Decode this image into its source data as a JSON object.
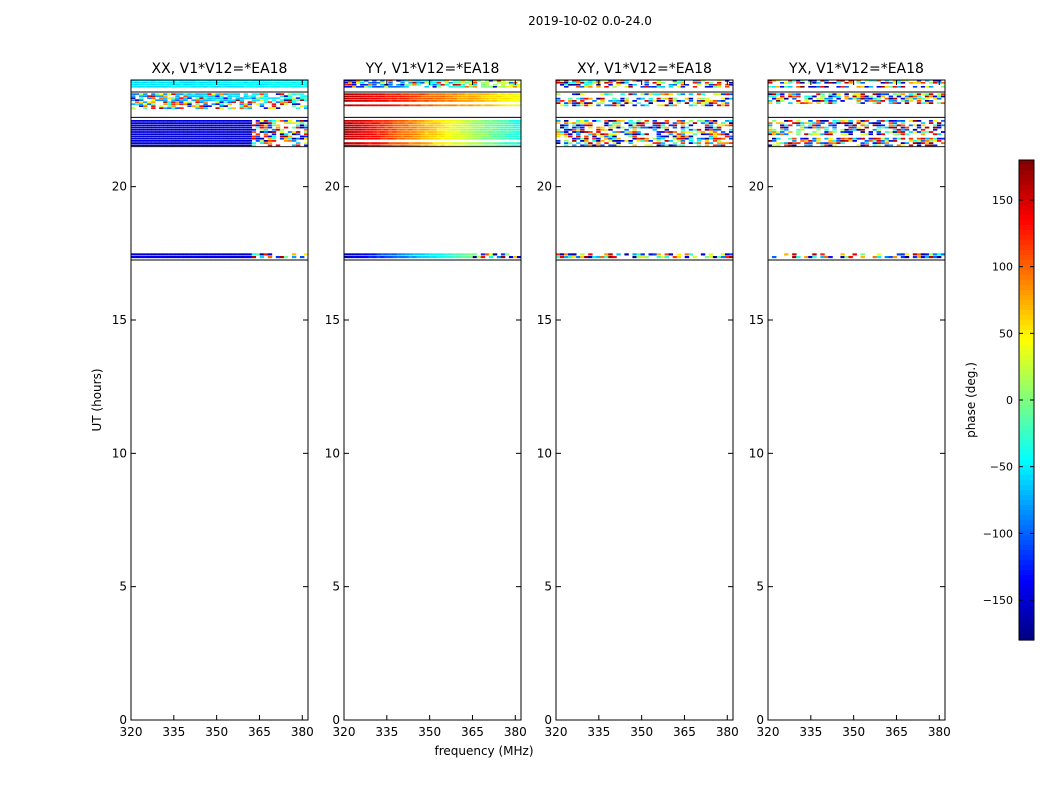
{
  "suptitle": "2019-10-02 0.0-24.0",
  "chart_data": {
    "type": "heatmap",
    "xlabel": "frequency (MHz)",
    "ylabel": "UT (hours)",
    "xlim": [
      320,
      382
    ],
    "ylim": [
      0,
      24
    ],
    "xticks": [
      320,
      335,
      350,
      365,
      380
    ],
    "yticks": [
      0,
      5,
      10,
      15,
      20
    ],
    "colorbar": {
      "label": "phase (deg.)",
      "range": [
        -180,
        180
      ],
      "ticks": [
        -150,
        -100,
        -50,
        0,
        50,
        100,
        150
      ],
      "colormap": "jet"
    },
    "panels": [
      {
        "title": "XX, V1*V12=*EA18",
        "bands": [
          {
            "y": [
              23.7,
              24.0
            ],
            "kind": "coherent",
            "phase_start": -55,
            "phase_end": -45
          },
          {
            "y": [
              23.2,
              23.5
            ],
            "kind": "mixed",
            "phase_start": -90,
            "phase_end": -40
          },
          {
            "y": [
              22.9,
              23.2
            ],
            "kind": "noise"
          },
          {
            "y": [
              21.5,
              22.5
            ],
            "kind": "coherent",
            "phase_start": -150,
            "phase_end": -150,
            "noise_from": 362
          }
        ],
        "events": [
          {
            "y": [
              17.3,
              17.5
            ],
            "kind": "coherent",
            "phase_start": -145,
            "phase_end": -145,
            "noise_from": 362
          }
        ]
      },
      {
        "title": "YY, V1*V12=*EA18",
        "bands": [
          {
            "y": [
              23.7,
              24.0
            ],
            "kind": "mixed",
            "phase_start": -140,
            "phase_end": 40
          },
          {
            "y": [
              23.0,
              23.5
            ],
            "kind": "coherent",
            "phase_start": 160,
            "phase_end": 40
          },
          {
            "y": [
              21.5,
              22.5
            ],
            "kind": "coherent",
            "phase_start": 165,
            "phase_end": -40
          }
        ],
        "events": [
          {
            "y": [
              17.3,
              17.5
            ],
            "kind": "coherent",
            "phase_start": -160,
            "phase_end": 60,
            "noise_from": 365
          }
        ]
      },
      {
        "title": "XY, V1*V12=*EA18",
        "bands": [
          {
            "y": [
              23.7,
              24.0
            ],
            "kind": "noise"
          },
          {
            "y": [
              23.0,
              23.5
            ],
            "kind": "noise"
          },
          {
            "y": [
              21.5,
              22.5
            ],
            "kind": "noise"
          }
        ],
        "events": [
          {
            "y": [
              17.3,
              17.5
            ],
            "kind": "noise"
          }
        ]
      },
      {
        "title": "YX, V1*V12=*EA18",
        "bands": [
          {
            "y": [
              23.7,
              24.0
            ],
            "kind": "noise"
          },
          {
            "y": [
              23.0,
              23.5
            ],
            "kind": "noise"
          },
          {
            "y": [
              21.5,
              22.5
            ],
            "kind": "noise"
          }
        ],
        "events": [
          {
            "y": [
              17.3,
              17.5
            ],
            "kind": "noise"
          }
        ]
      }
    ]
  }
}
